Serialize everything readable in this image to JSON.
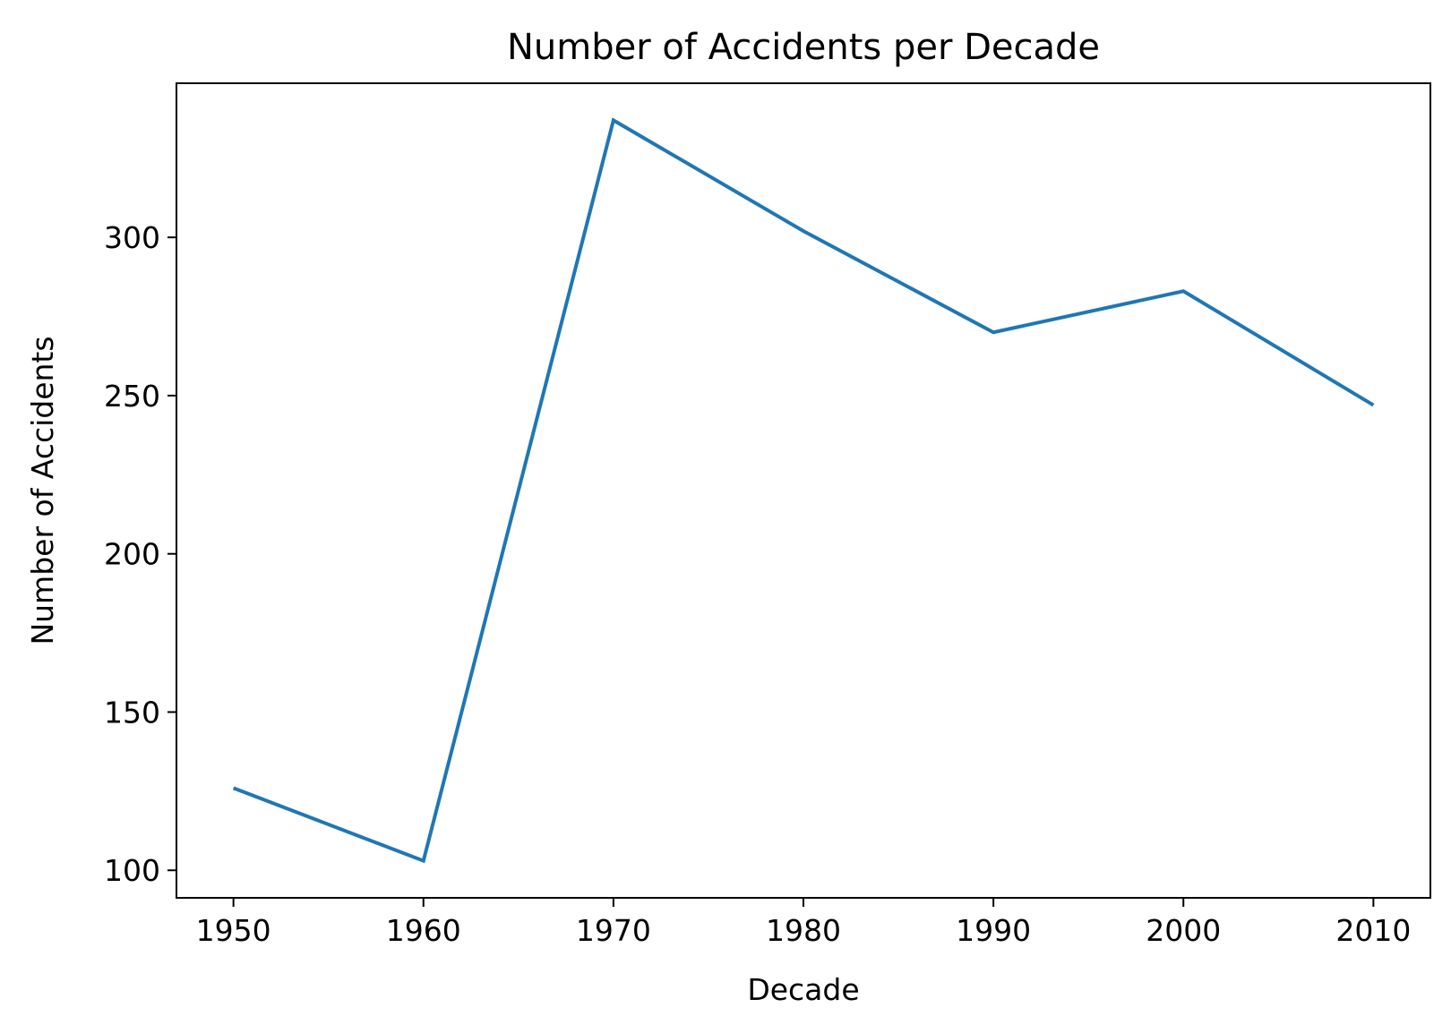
{
  "chart_data": {
    "type": "line",
    "title": "Number of Accidents per Decade",
    "xlabel": "Decade",
    "ylabel": "Number of Accidents",
    "x": [
      1950,
      1960,
      1970,
      1980,
      1990,
      2000,
      2010
    ],
    "series": [
      {
        "values": [
          126,
          103,
          337,
          302,
          270,
          283,
          247
        ],
        "color": "#1f77b4"
      }
    ],
    "xticks": [
      "1950",
      "1960",
      "1970",
      "1980",
      "1990",
      "2000",
      "2010"
    ],
    "yticks": [
      "100",
      "150",
      "200",
      "250",
      "300"
    ],
    "xlim": [
      1947,
      2013
    ],
    "ylim": [
      91.3,
      348.7
    ],
    "grid": false,
    "legend": "none"
  }
}
